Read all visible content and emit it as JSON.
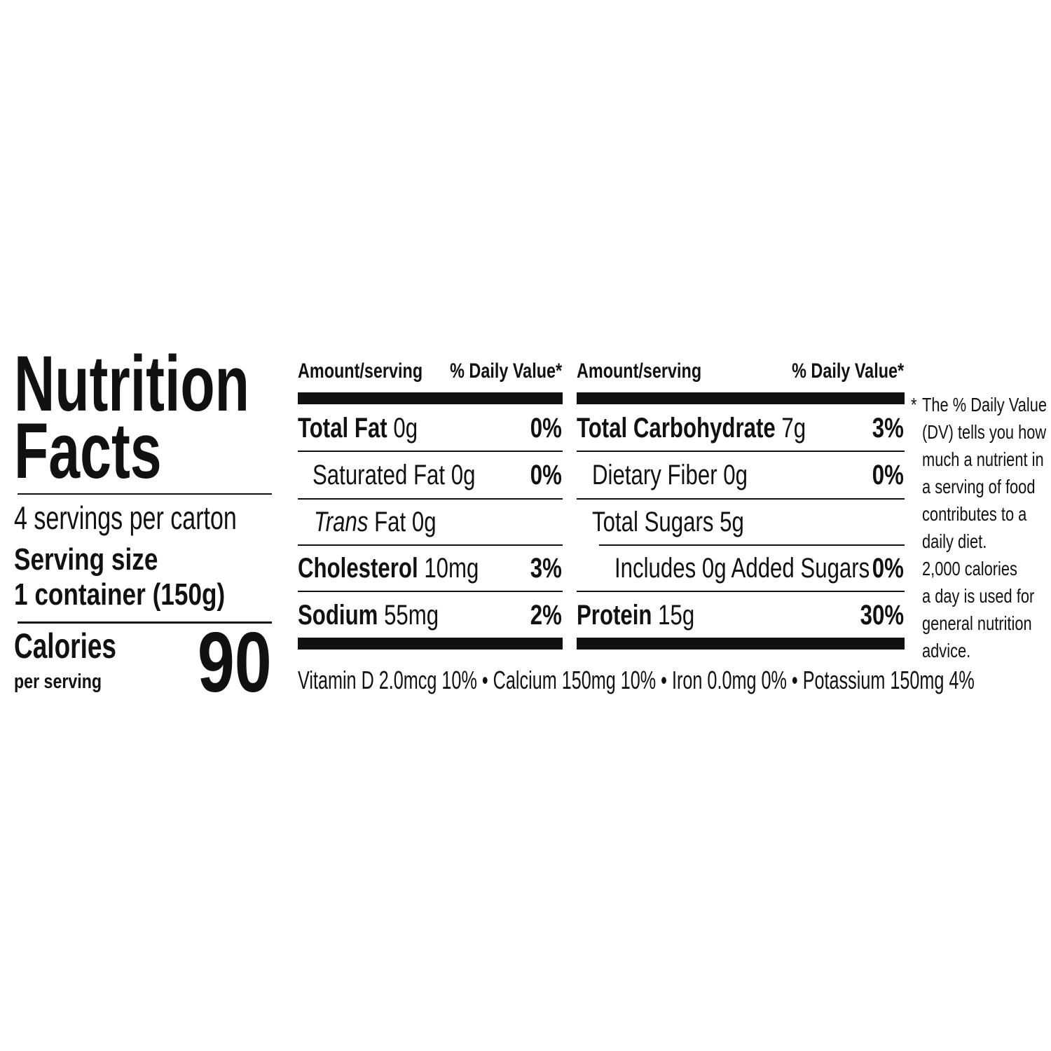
{
  "title_line1": "Nutrition",
  "title_line2": "Facts",
  "servings": "4 servings per carton",
  "serving_size_label": "Serving size",
  "serving_size_value": "1 container (150g)",
  "calories_label": "Calories",
  "calories_sub": "per serving",
  "calories_value": "90",
  "left_table": {
    "header_amount": "Amount/serving",
    "header_dv": "% Daily Value*",
    "rows": [
      {
        "name": "Total Fat",
        "amount": "0g",
        "dv": "0%"
      },
      {
        "name": "Saturated Fat",
        "amount": "0g",
        "dv": "0%"
      },
      {
        "name": "Trans",
        "amount": "Fat 0g",
        "dv": ""
      },
      {
        "name": "Cholesterol",
        "amount": "10mg",
        "dv": "3%"
      },
      {
        "name": "Sodium",
        "amount": "55mg",
        "dv": "2%"
      }
    ]
  },
  "right_table": {
    "header_amount": "Amount/serving",
    "header_dv": "% Daily Value*",
    "rows": [
      {
        "name": "Total Carbohydrate",
        "amount": "7g",
        "dv": "3%"
      },
      {
        "name": "Dietary Fiber",
        "amount": "0g",
        "dv": "0%"
      },
      {
        "name": "Total Sugars",
        "amount": "5g",
        "dv": ""
      },
      {
        "name": "Includes 0g Added Sugars",
        "amount": "",
        "dv": "0%"
      },
      {
        "name": "Protein",
        "amount": "15g",
        "dv": "30%"
      }
    ]
  },
  "vitamins": "Vitamin D 2.0mcg 10% • Calcium 150mg 10% • Iron 0.0mg 0% • Potassium 150mg 4%",
  "footnote": {
    "asterisk": "*",
    "lines": [
      "The % Daily Value",
      "(DV) tells you how",
      "much a nutrient in",
      "a serving of food",
      "contributes to a",
      "daily diet.",
      "2,000 calories",
      "a day is used for",
      "general nutrition",
      "advice."
    ]
  }
}
